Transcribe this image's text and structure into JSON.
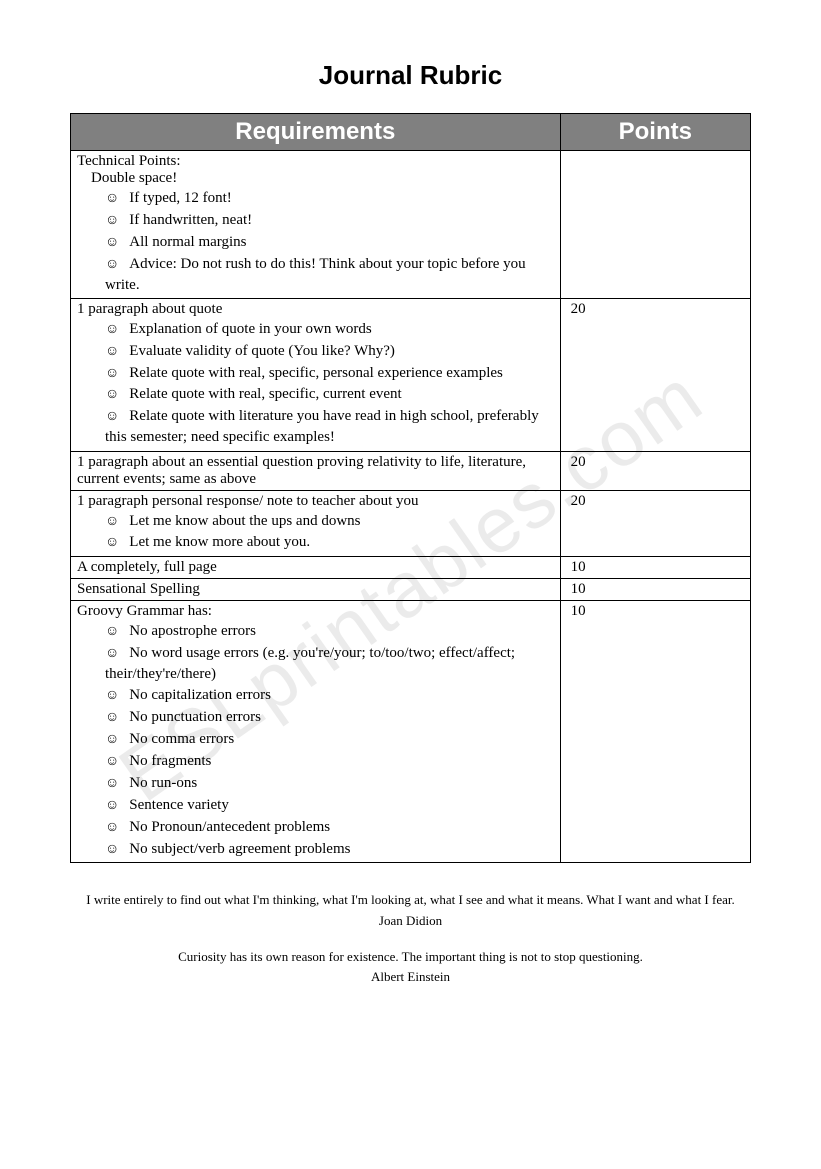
{
  "title": "Journal Rubric",
  "header": {
    "requirements": "Requirements",
    "points": "Points"
  },
  "rows": [
    {
      "heading": "Technical Points:",
      "subheading": "Double space!",
      "bullets": [
        "If typed, 12 font!",
        "If handwritten, neat!",
        "All normal margins",
        "Advice: Do not rush to do this!  Think about your topic before you write."
      ],
      "points": ""
    },
    {
      "heading": "1 paragraph about quote",
      "bullets": [
        "Explanation of quote in your own words",
        "Evaluate validity of quote (You like? Why?)",
        "Relate quote with real, specific, personal experience examples",
        "Relate quote with real, specific, current event",
        "Relate quote with literature you have read in high school, preferably this semester; need specific examples!"
      ],
      "points": "20"
    },
    {
      "heading": "1 paragraph about an essential question proving relativity to life, literature, current events; same as above",
      "bullets": [],
      "points": "20"
    },
    {
      "heading": "1 paragraph personal response/ note to teacher about you",
      "bullets": [
        "Let me know about the ups and downs",
        "Let me know more about you."
      ],
      "points": "20"
    },
    {
      "heading": "A completely, full page",
      "bullets": [],
      "points": "10"
    },
    {
      "heading": "Sensational Spelling",
      "bullets": [],
      "points": "10"
    },
    {
      "heading": "Groovy Grammar has:",
      "bullets": [
        "No apostrophe errors",
        "No word usage errors (e.g. you're/your; to/too/two; effect/affect; their/they're/there)",
        "No capitalization errors",
        "No punctuation errors",
        "No comma errors",
        "No fragments",
        "No run-ons",
        "Sentence variety",
        "No Pronoun/antecedent problems",
        "No subject/verb agreement problems"
      ],
      "points": "10"
    }
  ],
  "quotes": [
    {
      "text": "I write entirely to find out what I'm thinking, what I'm looking at, what I see and what it means. What I want and what I fear.",
      "author": "Joan Didion"
    },
    {
      "text": "Curiosity has its own reason for existence. The important thing is not to stop questioning.",
      "author": "Albert Einstein"
    }
  ],
  "watermark": "ESLprintables.com",
  "colors": {
    "header_bg": "#808080",
    "header_text": "#ffffff",
    "border": "#000000",
    "watermark": "rgba(0,0,0,0.08)"
  }
}
